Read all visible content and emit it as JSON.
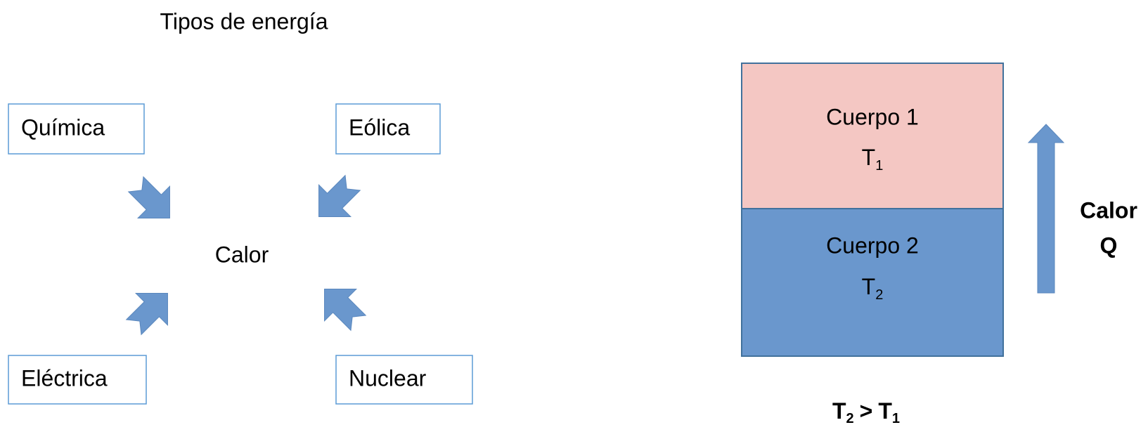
{
  "title": "Tipos de energía",
  "center": "Calor",
  "sources": [
    {
      "label": "Química"
    },
    {
      "label": "Eólica"
    },
    {
      "label": "Eléctrica"
    },
    {
      "label": "Nuclear"
    }
  ],
  "bodies": [
    {
      "label": "Cuerpo 1",
      "temp": {
        "symbol": "T",
        "sub": "1"
      }
    },
    {
      "label": "Cuerpo 2",
      "temp": {
        "symbol": "T",
        "sub": "2"
      }
    }
  ],
  "flow": {
    "label": "Calor",
    "symbol": "Q"
  },
  "condition": {
    "left": {
      "symbol": "T",
      "sub": "2"
    },
    "operator": ">",
    "right": {
      "symbol": "T",
      "sub": "1"
    }
  }
}
